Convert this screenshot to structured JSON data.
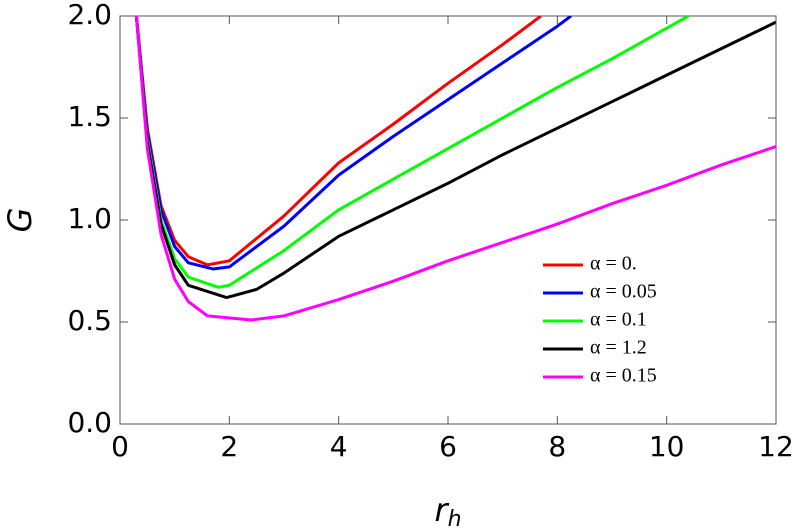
{
  "chart_data": {
    "type": "line",
    "xlabel": "r",
    "xlabel_subscript": "h",
    "ylabel": "G",
    "xlim": [
      0,
      12
    ],
    "ylim": [
      0,
      2
    ],
    "xticks": [
      0,
      2,
      4,
      6,
      8,
      10,
      12
    ],
    "yticks": [
      {
        "value": 0,
        "label": "0.0"
      },
      {
        "value": 0.5,
        "label": "0.5"
      },
      {
        "value": 1,
        "label": "1.0"
      },
      {
        "value": 1.5,
        "label": "1.5"
      },
      {
        "value": 2,
        "label": "2.0"
      }
    ],
    "legend": "lower right",
    "series": [
      {
        "name": "α = 0.",
        "color": "#ff0000",
        "x": [
          0.3,
          0.5,
          0.75,
          1,
          1.25,
          1.6,
          2,
          3,
          4,
          5,
          6,
          7,
          7.7
        ],
        "values": [
          2.0,
          1.45,
          1.07,
          0.9,
          0.82,
          0.78,
          0.8,
          1.02,
          1.28,
          1.47,
          1.67,
          1.86,
          2.0
        ]
      },
      {
        "name": "α = 0.05",
        "color": "#0000ff",
        "x": [
          0.3,
          0.5,
          0.75,
          1,
          1.25,
          1.7,
          2,
          3,
          4,
          5,
          6,
          7,
          8,
          8.25
        ],
        "values": [
          2.0,
          1.43,
          1.05,
          0.87,
          0.79,
          0.76,
          0.77,
          0.97,
          1.22,
          1.41,
          1.59,
          1.77,
          1.95,
          2.0
        ]
      },
      {
        "name": "α = 0.1",
        "color": "#00ff00",
        "x": [
          0.3,
          0.5,
          0.75,
          1,
          1.25,
          1.8,
          2,
          3,
          4,
          5,
          6,
          7,
          8,
          9,
          10,
          10.4
        ],
        "values": [
          2.0,
          1.4,
          1.0,
          0.81,
          0.72,
          0.67,
          0.68,
          0.85,
          1.05,
          1.2,
          1.35,
          1.5,
          1.65,
          1.79,
          1.94,
          2.0
        ]
      },
      {
        "name": "α = 1.2",
        "color": "#000000",
        "x": [
          0.3,
          0.5,
          0.75,
          1,
          1.25,
          1.95,
          2.5,
          3,
          4,
          5,
          6,
          7,
          8,
          9,
          10,
          11,
          12
        ],
        "values": [
          2.0,
          1.38,
          0.98,
          0.78,
          0.68,
          0.62,
          0.66,
          0.74,
          0.92,
          1.05,
          1.18,
          1.32,
          1.45,
          1.58,
          1.71,
          1.84,
          1.97
        ]
      },
      {
        "name": "α = 0.15",
        "color": "#ff00ff",
        "x": [
          0.3,
          0.5,
          0.75,
          1,
          1.25,
          1.6,
          2.4,
          3,
          4,
          5,
          6,
          7,
          8,
          9,
          10,
          11,
          12
        ],
        "values": [
          2.0,
          1.35,
          0.93,
          0.71,
          0.6,
          0.53,
          0.51,
          0.53,
          0.61,
          0.7,
          0.8,
          0.89,
          0.98,
          1.08,
          1.17,
          1.27,
          1.36
        ]
      }
    ]
  }
}
